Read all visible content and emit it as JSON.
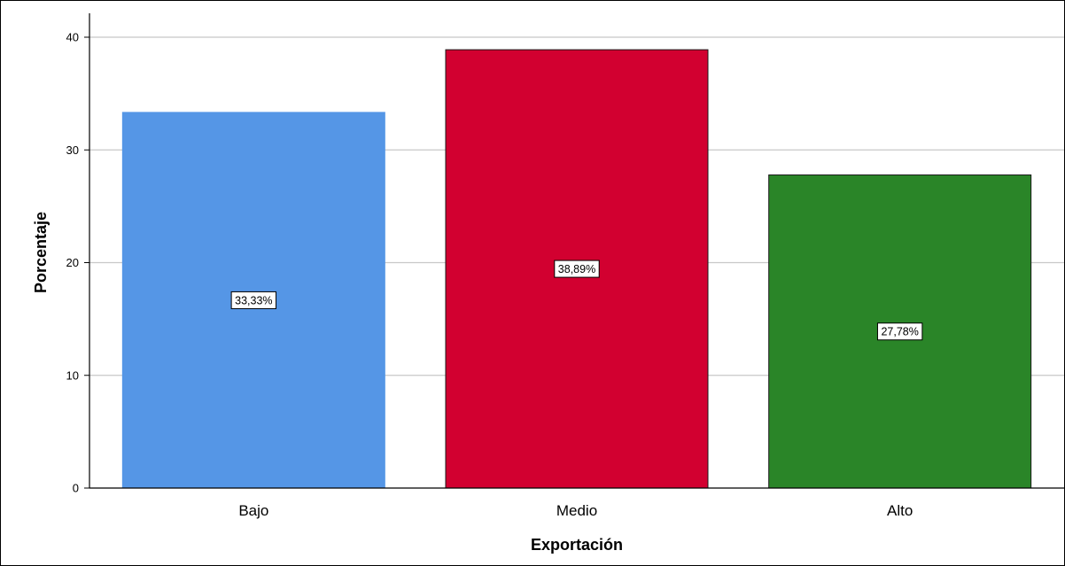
{
  "chart_data": {
    "type": "bar",
    "categories": [
      "Bajo",
      "Medio",
      "Alto"
    ],
    "values": [
      33.33,
      38.89,
      27.78
    ],
    "data_labels": [
      "33,33%",
      "38,89%",
      "27,78%"
    ],
    "colors": [
      "#5596e6",
      "#d20030",
      "#2a8528"
    ],
    "xlabel": "Exportación",
    "ylabel": "Porcentaje",
    "ylim": [
      0,
      42
    ],
    "yticks": [
      0,
      10,
      20,
      30,
      40
    ],
    "grid": true,
    "legend": "none"
  }
}
